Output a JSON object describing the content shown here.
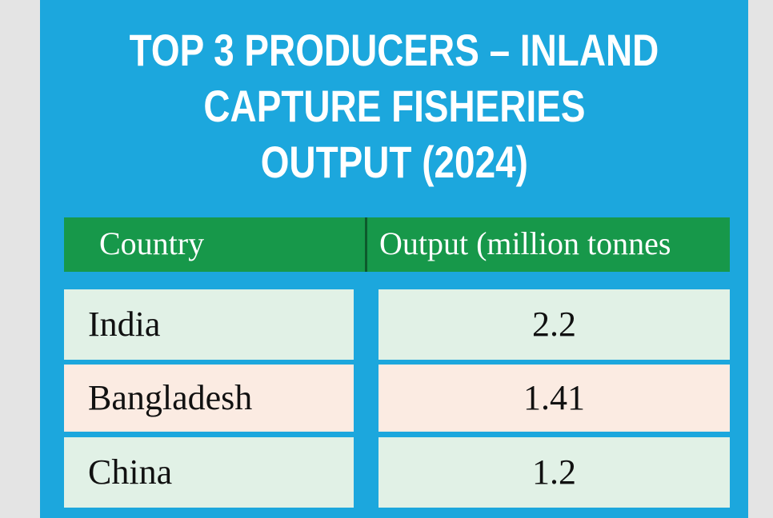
{
  "title": {
    "lines": [
      "TOP 3 PRODUCERS – INLAND",
      "CAPTURE FISHERIES",
      "OUTPUT (2024)"
    ]
  },
  "table": {
    "header": [
      "Country",
      "Output (million tonnes"
    ],
    "rows": [
      [
        "India",
        "2.2"
      ],
      [
        "Bangladesh",
        "1.41"
      ],
      [
        "China",
        "1.2"
      ]
    ]
  }
}
